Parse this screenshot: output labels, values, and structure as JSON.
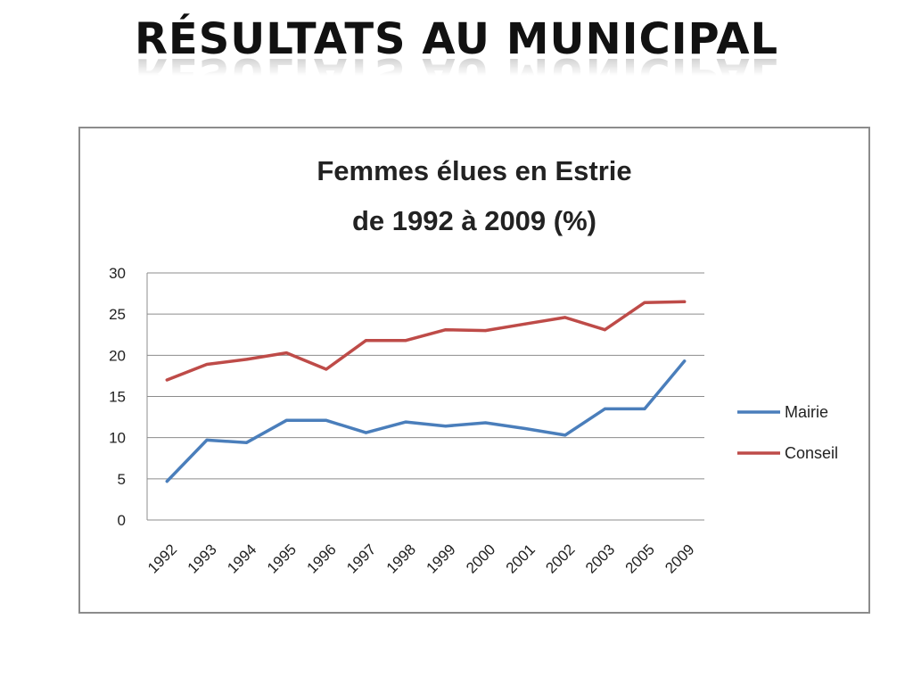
{
  "slide": {
    "title": "RÉSULTATS AU MUNICIPAL"
  },
  "chart_data": {
    "type": "line",
    "title_lines": [
      "Femmes élues en Estrie",
      "de 1992 à 2009 (%)"
    ],
    "categories": [
      "1992",
      "1993",
      "1994",
      "1995",
      "1996",
      "1997",
      "1998",
      "1999",
      "2000",
      "2001",
      "2002",
      "2003",
      "2005",
      "2009"
    ],
    "series": [
      {
        "name": "Mairie",
        "color": "#4a7ebb",
        "values": [
          4.7,
          9.7,
          9.4,
          12.1,
          12.1,
          10.6,
          11.9,
          11.4,
          11.8,
          11.1,
          10.3,
          13.5,
          13.5,
          19.3
        ]
      },
      {
        "name": "Conseil",
        "color": "#be4b48",
        "values": [
          17.0,
          18.9,
          19.5,
          20.3,
          18.3,
          21.8,
          21.8,
          23.1,
          23.0,
          23.8,
          24.6,
          23.1,
          26.4,
          26.5
        ]
      }
    ],
    "ylim": [
      0,
      30
    ],
    "yticks": [
      0,
      5,
      10,
      15,
      20,
      25,
      30
    ],
    "grid": true,
    "legend_position": "right",
    "xlabel": "",
    "ylabel": ""
  }
}
